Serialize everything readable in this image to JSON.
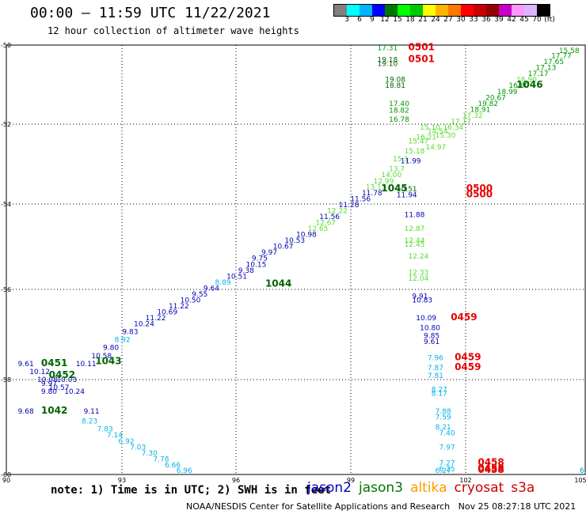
{
  "header": {
    "title": "00:00 – 11:59 UTC 11/22/2021",
    "subtitle": "12 hour collection of altimeter wave heights"
  },
  "legend": {
    "colors": [
      "#808080",
      "#00ffff",
      "#00b4ff",
      "#0000ff",
      "#007800",
      "#00ff00",
      "#00c800",
      "#ffff00",
      "#ffb400",
      "#ff7800",
      "#ff0000",
      "#c80000",
      "#960000",
      "#c800c8",
      "#ff96ff",
      "#dcb4ff",
      "#000000"
    ],
    "labels": [
      "3",
      "6",
      "9",
      "12",
      "15",
      "18",
      "21",
      "24",
      "27",
      "30",
      "33",
      "36",
      "39",
      "42",
      "45",
      "70",
      "(ft)"
    ]
  },
  "axes": {
    "lat_labels": [
      "-50",
      "-52",
      "-54",
      "-56",
      "-58",
      "-60"
    ],
    "lon_labels": [
      "90",
      "93",
      "96",
      "99",
      "102",
      "105"
    ]
  },
  "footer": {
    "note": "note: 1) Time is in UTC; 2) SWH is in feet",
    "satellites": [
      {
        "name": "jason2",
        "color": "#0000cc"
      },
      {
        "name": "jason3",
        "color": "#007800"
      },
      {
        "name": "altika",
        "color": "#ff9900"
      },
      {
        "name": "cryosat",
        "color": "#cc0000"
      },
      {
        "name": "s3a",
        "color": "#cc0000"
      }
    ],
    "credit": "NOAA/NESDIS Center for Satellite Applications and Research   Nov 25 08:27:18 UTC 2021"
  },
  "map_data": {
    "extent": {
      "lon_min": 90,
      "lon_max": 105,
      "lat_min": -60,
      "lat_max": -50
    },
    "colors": {
      "cyan": "#00b4e6",
      "blue": "#0000b4",
      "lightgreen": "#5adc32",
      "green": "#009600",
      "darkgreen": "#006400",
      "red": "#e60000"
    },
    "swh_labels": [
      {
        "lon": 90.3,
        "lat": -59.2,
        "text": "9.68",
        "c": "blue"
      },
      {
        "lon": 90.3,
        "lat": -58.0,
        "text": "9.61",
        "c": "blue"
      },
      {
        "lon": 90.6,
        "lat": -58.2,
        "text": "10.12",
        "c": "blue"
      },
      {
        "lon": 90.8,
        "lat": -58.4,
        "text": "10.08",
        "c": "blue"
      },
      {
        "lon": 90.9,
        "lat": -58.5,
        "text": "9.97",
        "c": "blue"
      },
      {
        "lon": 90.9,
        "lat": -58.7,
        "text": "9.80",
        "c": "blue"
      },
      {
        "lon": 91.1,
        "lat": -58.6,
        "text": "10.57",
        "c": "blue"
      },
      {
        "lon": 91.3,
        "lat": -58.4,
        "text": "10.03",
        "c": "blue"
      },
      {
        "lon": 91.5,
        "lat": -58.7,
        "text": "10.24",
        "c": "blue"
      },
      {
        "lon": 91.8,
        "lat": -58.0,
        "text": "10.11",
        "c": "blue"
      },
      {
        "lon": 92.0,
        "lat": -59.2,
        "text": "9.11",
        "c": "blue"
      },
      {
        "lon": 92.2,
        "lat": -57.8,
        "text": "10.58",
        "c": "blue"
      },
      {
        "lon": 92.5,
        "lat": -57.6,
        "text": "9.80",
        "c": "blue"
      },
      {
        "lon": 92.8,
        "lat": -57.4,
        "text": "8.92",
        "c": "cyan"
      },
      {
        "lon": 93.0,
        "lat": -57.2,
        "text": "9.83",
        "c": "blue"
      },
      {
        "lon": 93.3,
        "lat": -57.0,
        "text": "10.24",
        "c": "blue"
      },
      {
        "lon": 93.6,
        "lat": -56.85,
        "text": "11.22",
        "c": "blue"
      },
      {
        "lon": 93.9,
        "lat": -56.7,
        "text": "10.69",
        "c": "blue"
      },
      {
        "lon": 94.2,
        "lat": -56.55,
        "text": "11.22",
        "c": "blue"
      },
      {
        "lon": 94.5,
        "lat": -56.4,
        "text": "10.50",
        "c": "blue"
      },
      {
        "lon": 94.8,
        "lat": -56.25,
        "text": "9.55",
        "c": "blue"
      },
      {
        "lon": 95.1,
        "lat": -56.1,
        "text": "9.64",
        "c": "blue"
      },
      {
        "lon": 95.4,
        "lat": -55.95,
        "text": "8.89",
        "c": "cyan"
      },
      {
        "lon": 95.7,
        "lat": -55.8,
        "text": "10.51",
        "c": "blue"
      },
      {
        "lon": 96.0,
        "lat": -55.65,
        "text": "9.38",
        "c": "blue"
      },
      {
        "lon": 96.2,
        "lat": -55.5,
        "text": "10.15",
        "c": "blue"
      },
      {
        "lon": 96.35,
        "lat": -55.35,
        "text": "9.75",
        "c": "blue"
      },
      {
        "lon": 96.6,
        "lat": -55.2,
        "text": "9.97",
        "c": "blue"
      },
      {
        "lon": 96.9,
        "lat": -55.05,
        "text": "10.67",
        "c": "blue"
      },
      {
        "lon": 97.2,
        "lat": -54.9,
        "text": "10.53",
        "c": "blue"
      },
      {
        "lon": 97.5,
        "lat": -54.75,
        "text": "10.98",
        "c": "blue"
      },
      {
        "lon": 97.8,
        "lat": -54.6,
        "text": "12.65",
        "c": "lightgreen"
      },
      {
        "lon": 98.0,
        "lat": -54.45,
        "text": "12.67",
        "c": "lightgreen"
      },
      {
        "lon": 98.1,
        "lat": -54.3,
        "text": "11.56",
        "c": "blue"
      },
      {
        "lon": 98.3,
        "lat": -54.15,
        "text": "12.22",
        "c": "lightgreen"
      },
      {
        "lon": 98.6,
        "lat": -54.0,
        "text": "11.28",
        "c": "blue"
      },
      {
        "lon": 98.9,
        "lat": -53.85,
        "text": "11.56",
        "c": "blue"
      },
      {
        "lon": 99.2,
        "lat": -53.7,
        "text": "11.78",
        "c": "blue"
      },
      {
        "lon": 99.3,
        "lat": -53.55,
        "text": "13.15",
        "c": "lightgreen"
      },
      {
        "lon": 99.5,
        "lat": -53.4,
        "text": "12.99",
        "c": "lightgreen"
      },
      {
        "lon": 99.7,
        "lat": -53.25,
        "text": "14.00",
        "c": "lightgreen"
      },
      {
        "lon": 99.9,
        "lat": -53.1,
        "text": "13.7",
        "c": "lightgreen"
      },
      {
        "lon": 100.0,
        "lat": -52.85,
        "text": "15.1",
        "c": "lightgreen"
      },
      {
        "lon": 100.2,
        "lat": -52.9,
        "text": "11.99",
        "c": "blue"
      },
      {
        "lon": 100.3,
        "lat": -52.65,
        "text": "15.18",
        "c": "lightgreen"
      },
      {
        "lon": 100.4,
        "lat": -52.4,
        "text": "15.47",
        "c": "lightgreen"
      },
      {
        "lon": 100.6,
        "lat": -52.3,
        "text": "16.21",
        "c": "lightgreen"
      },
      {
        "lon": 100.7,
        "lat": -52.05,
        "text": "15.10",
        "c": "lightgreen"
      },
      {
        "lon": 100.85,
        "lat": -52.55,
        "text": "14.97",
        "c": "lightgreen"
      },
      {
        "lon": 100.9,
        "lat": -52.15,
        "text": "14.54",
        "c": "lightgreen"
      },
      {
        "lon": 101.1,
        "lat": -52.25,
        "text": "15.30",
        "c": "lightgreen"
      },
      {
        "lon": 101.3,
        "lat": -52.05,
        "text": "16.34",
        "c": "lightgreen"
      },
      {
        "lon": 101.5,
        "lat": -51.9,
        "text": "17.17",
        "c": "lightgreen"
      },
      {
        "lon": 101.8,
        "lat": -51.75,
        "text": "17.32",
        "c": "lightgreen"
      },
      {
        "lon": 102.0,
        "lat": -51.6,
        "text": "18.91",
        "c": "green"
      },
      {
        "lon": 102.2,
        "lat": -51.45,
        "text": "19.82",
        "c": "green"
      },
      {
        "lon": 102.4,
        "lat": -51.3,
        "text": "20.67",
        "c": "green"
      },
      {
        "lon": 102.7,
        "lat": -51.15,
        "text": "18.99",
        "c": "green"
      },
      {
        "lon": 103.0,
        "lat": -51.0,
        "text": "16.80",
        "c": "green"
      },
      {
        "lon": 103.2,
        "lat": -50.85,
        "text": "16.90",
        "c": "lightgreen"
      },
      {
        "lon": 103.5,
        "lat": -50.7,
        "text": "17.17",
        "c": "green"
      },
      {
        "lon": 103.7,
        "lat": -50.55,
        "text": "17.13",
        "c": "green"
      },
      {
        "lon": 103.9,
        "lat": -50.4,
        "text": "17.65",
        "c": "green"
      },
      {
        "lon": 104.1,
        "lat": -50.25,
        "text": "17.77",
        "c": "green"
      },
      {
        "lon": 104.3,
        "lat": -50.12,
        "text": "15.58",
        "c": "green"
      },
      {
        "lon": 99.6,
        "lat": -50.05,
        "text": "17.31",
        "c": "green"
      },
      {
        "lon": 99.6,
        "lat": -50.35,
        "text": "19.18",
        "c": "darkgreen"
      },
      {
        "lon": 99.6,
        "lat": -50.45,
        "text": "19.10",
        "c": "darkgreen"
      },
      {
        "lon": 99.8,
        "lat": -50.85,
        "text": "19.08",
        "c": "darkgreen"
      },
      {
        "lon": 99.8,
        "lat": -51.0,
        "text": "18.81",
        "c": "darkgreen"
      },
      {
        "lon": 99.9,
        "lat": -51.45,
        "text": "17.40",
        "c": "green"
      },
      {
        "lon": 99.9,
        "lat": -51.62,
        "text": "18.82",
        "c": "green"
      },
      {
        "lon": 99.9,
        "lat": -51.85,
        "text": "16.78",
        "c": "green"
      },
      {
        "lon": 100.1,
        "lat": -53.6,
        "text": "10.51",
        "c": "darkgreen"
      },
      {
        "lon": 100.1,
        "lat": -53.75,
        "text": "11.94",
        "c": "blue"
      },
      {
        "lon": 100.3,
        "lat": -54.25,
        "text": "11.88",
        "c": "blue"
      },
      {
        "lon": 100.3,
        "lat": -54.6,
        "text": "12.87",
        "c": "lightgreen"
      },
      {
        "lon": 100.3,
        "lat": -54.9,
        "text": "12.44",
        "c": "lightgreen"
      },
      {
        "lon": 100.3,
        "lat": -55.0,
        "text": "12.45",
        "c": "lightgreen"
      },
      {
        "lon": 100.4,
        "lat": -55.3,
        "text": "12.24",
        "c": "lightgreen"
      },
      {
        "lon": 100.4,
        "lat": -55.7,
        "text": "12.33",
        "c": "lightgreen"
      },
      {
        "lon": 100.4,
        "lat": -55.85,
        "text": "12.04",
        "c": "lightgreen"
      },
      {
        "lon": 100.5,
        "lat": -56.3,
        "text": "9.91",
        "c": "blue"
      },
      {
        "lon": 100.5,
        "lat": -56.4,
        "text": "10.83",
        "c": "blue"
      },
      {
        "lon": 100.6,
        "lat": -56.85,
        "text": "10.09",
        "c": "blue"
      },
      {
        "lon": 100.7,
        "lat": -57.1,
        "text": "10.80",
        "c": "blue"
      },
      {
        "lon": 100.8,
        "lat": -57.3,
        "text": "9.85",
        "c": "blue"
      },
      {
        "lon": 100.8,
        "lat": -57.45,
        "text": "9.61",
        "c": "blue"
      },
      {
        "lon": 100.9,
        "lat": -57.85,
        "text": "7.96",
        "c": "cyan"
      },
      {
        "lon": 100.9,
        "lat": -58.1,
        "text": "7.87",
        "c": "cyan"
      },
      {
        "lon": 100.9,
        "lat": -58.3,
        "text": "7.81",
        "c": "cyan"
      },
      {
        "lon": 101.0,
        "lat": -58.65,
        "text": "8.27",
        "c": "cyan"
      },
      {
        "lon": 101.0,
        "lat": -58.75,
        "text": "8.17",
        "c": "cyan"
      },
      {
        "lon": 101.1,
        "lat": -59.2,
        "text": "7.88",
        "c": "cyan"
      },
      {
        "lon": 101.1,
        "lat": -59.35,
        "text": "7.59",
        "c": "cyan"
      },
      {
        "lon": 101.1,
        "lat": -59.6,
        "text": "8.21",
        "c": "cyan"
      },
      {
        "lon": 101.2,
        "lat": -59.75,
        "text": "7.40",
        "c": "cyan"
      },
      {
        "lon": 101.2,
        "lat": -60.1,
        "text": "7.97",
        "c": "cyan"
      },
      {
        "lon": 101.2,
        "lat": -60.5,
        "text": "7.27",
        "c": "cyan"
      },
      {
        "lon": 101.2,
        "lat": -60.65,
        "text": "6.25",
        "c": "cyan"
      },
      {
        "lon": 101.1,
        "lat": -61.05,
        "text": "6.27",
        "c": "cyan"
      },
      {
        "lon": 104.9,
        "lat": -60.7,
        "text": "6.",
        "c": "cyan"
      },
      {
        "lon": 104.9,
        "lat": -61.05,
        "text": "6.8",
        "c": "cyan"
      },
      {
        "lon": 91.95,
        "lat": -59.45,
        "text": "8.23",
        "c": "cyan"
      },
      {
        "lon": 92.35,
        "lat": -59.65,
        "text": "7.83",
        "c": "cyan"
      },
      {
        "lon": 92.6,
        "lat": -59.8,
        "text": "7.14",
        "c": "cyan"
      },
      {
        "lon": 92.9,
        "lat": -59.95,
        "text": "6.92",
        "c": "cyan"
      },
      {
        "lon": 93.2,
        "lat": -60.1,
        "text": "7.03",
        "c": "cyan"
      },
      {
        "lon": 93.5,
        "lat": -60.25,
        "text": "7.30",
        "c": "cyan"
      },
      {
        "lon": 93.8,
        "lat": -60.4,
        "text": "7.78",
        "c": "cyan"
      },
      {
        "lon": 94.1,
        "lat": -60.55,
        "text": "6.66",
        "c": "cyan"
      },
      {
        "lon": 94.4,
        "lat": -60.7,
        "text": "6.96",
        "c": "cyan"
      }
    ],
    "time_labels": [
      {
        "lon": 100.4,
        "lat": -50.05,
        "text": "0501",
        "c": "red"
      },
      {
        "lon": 100.4,
        "lat": -50.35,
        "text": "0501",
        "c": "red"
      },
      {
        "lon": 103.2,
        "lat": -51.0,
        "text": "1046",
        "c": "darkgreen"
      },
      {
        "lon": 99.7,
        "lat": -53.6,
        "text": "1045",
        "c": "darkgreen"
      },
      {
        "lon": 101.9,
        "lat": -53.6,
        "text": "0500",
        "c": "red"
      },
      {
        "lon": 101.9,
        "lat": -53.75,
        "text": "0500",
        "c": "red"
      },
      {
        "lon": 96.7,
        "lat": -56.0,
        "text": "1044",
        "c": "darkgreen"
      },
      {
        "lon": 101.5,
        "lat": -56.85,
        "text": "0459",
        "c": "red"
      },
      {
        "lon": 101.6,
        "lat": -57.85,
        "text": "0459",
        "c": "red"
      },
      {
        "lon": 101.6,
        "lat": -58.1,
        "text": "0459",
        "c": "red"
      },
      {
        "lon": 92.3,
        "lat": -57.95,
        "text": "1043",
        "c": "darkgreen"
      },
      {
        "lon": 90.9,
        "lat": -58.0,
        "text": "0451",
        "c": "darkgreen"
      },
      {
        "lon": 91.1,
        "lat": -58.3,
        "text": "0452",
        "c": "darkgreen"
      },
      {
        "lon": 90.9,
        "lat": -59.2,
        "text": "1042",
        "c": "darkgreen"
      },
      {
        "lon": 102.2,
        "lat": -60.5,
        "text": "0458",
        "c": "red"
      },
      {
        "lon": 102.2,
        "lat": -60.65,
        "text": "0458",
        "c": "red"
      },
      {
        "lon": 102.2,
        "lat": -61.05,
        "text": "0458",
        "c": "red"
      }
    ]
  }
}
